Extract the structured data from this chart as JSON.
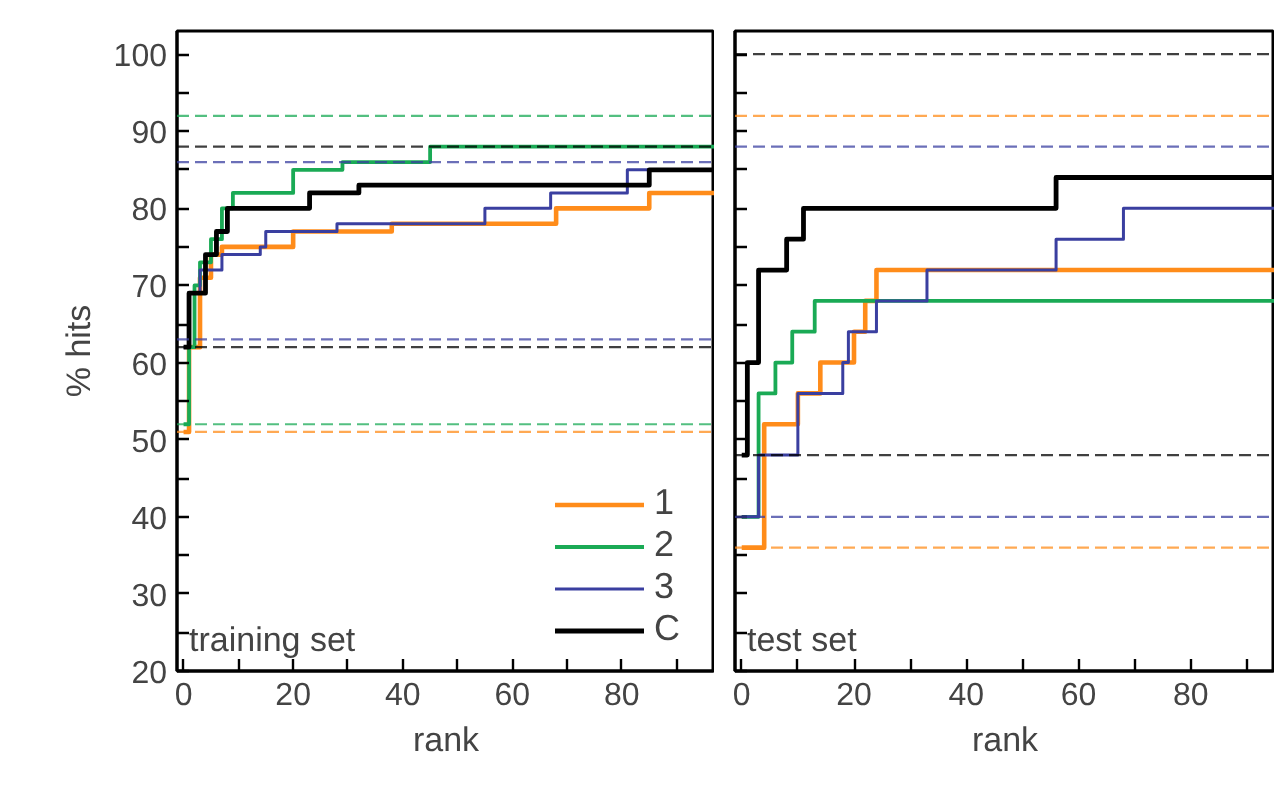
{
  "chart_data": [
    {
      "type": "step",
      "title": "training set",
      "xlabel": "rank",
      "ylabel": "% hits",
      "xlim": [
        -1.2,
        97
      ],
      "ylim": [
        20,
        103
      ],
      "xticks": [
        0,
        {
          "value": 10,
          "label": null
        },
        20,
        {
          "value": 30,
          "label": null
        },
        40,
        {
          "value": 50,
          "label": null
        },
        60,
        {
          "value": 70,
          "label": null
        },
        80,
        {
          "value": 90,
          "label": null
        }
      ],
      "yticks": [
        20,
        {
          "value": 25,
          "label": null
        },
        30,
        {
          "value": 35,
          "label": null
        },
        40,
        {
          "value": 45,
          "label": null
        },
        50,
        {
          "value": 55,
          "label": null
        },
        60,
        {
          "value": 65,
          "label": null
        },
        70,
        {
          "value": 75,
          "label": null
        },
        80,
        {
          "value": 85,
          "label": null
        },
        90,
        {
          "value": 95,
          "label": null
        },
        100
      ],
      "legend": "bottom right",
      "grid": false,
      "line_style": "solid",
      "series": [
        {
          "name": "1",
          "color": "#ff8c1a",
          "x": [
            0,
            1,
            3,
            5,
            7,
            20,
            38,
            68,
            85,
            97
          ],
          "values": [
            51,
            62,
            71,
            74,
            75,
            77,
            78,
            80,
            82,
            82
          ]
        },
        {
          "name": "2",
          "color": "#1aaa55",
          "x": [
            0,
            1,
            2,
            3,
            5,
            7,
            9,
            20,
            29,
            45,
            97
          ],
          "values": [
            52,
            62,
            70,
            73,
            76,
            80,
            82,
            85,
            86,
            88,
            88
          ]
        },
        {
          "name": "3",
          "color": "#3a3fa0",
          "x": [
            0,
            1,
            3,
            7,
            14,
            15,
            28,
            55,
            67,
            81,
            97
          ],
          "values": [
            62,
            69,
            72,
            74,
            75,
            77,
            78,
            80,
            82,
            85,
            85
          ]
        },
        {
          "name": "C",
          "color": "#000000",
          "x": [
            0,
            1,
            4,
            6,
            8,
            23,
            32,
            85,
            97
          ],
          "values": [
            62,
            69,
            74,
            77,
            80,
            82,
            83,
            85,
            85
          ]
        }
      ],
      "ref_lines": [
        {
          "axis": "y",
          "value": 92,
          "color": "#1aaa55",
          "line_style": "dashed"
        },
        {
          "axis": "y",
          "value": 88,
          "color": "#000000",
          "line_style": "dashed"
        },
        {
          "axis": "y",
          "value": 86,
          "color": "#3a3fa0",
          "line_style": "dashed"
        },
        {
          "axis": "y",
          "value": 63,
          "color": "#3a3fa0",
          "line_style": "dashed"
        },
        {
          "axis": "y",
          "value": 62,
          "color": "#000000",
          "line_style": "dashed"
        },
        {
          "axis": "y",
          "value": 52,
          "color": "#1aaa55",
          "line_style": "dashed"
        },
        {
          "axis": "y",
          "value": 51,
          "color": "#ff8c1a",
          "line_style": "dashed"
        }
      ]
    },
    {
      "type": "step",
      "title": "test set",
      "xlabel": "rank",
      "xlim": [
        -1.2,
        95
      ],
      "ylim": [
        20,
        103
      ],
      "tick_labels": "x",
      "xticks": [
        0,
        {
          "value": 10,
          "label": null
        },
        20,
        {
          "value": 30,
          "label": null
        },
        40,
        {
          "value": 50,
          "label": null
        },
        60,
        {
          "value": 70,
          "label": null
        },
        80,
        {
          "value": 90,
          "label": null
        }
      ],
      "yticks": [
        {
          "value": 20,
          "label": null
        },
        {
          "value": 25,
          "label": null
        },
        {
          "value": 30,
          "label": null
        },
        {
          "value": 35,
          "label": null
        },
        {
          "value": 40,
          "label": null
        },
        {
          "value": 45,
          "label": null
        },
        {
          "value": 50,
          "label": null
        },
        {
          "value": 55,
          "label": null
        },
        {
          "value": 60,
          "label": null
        },
        {
          "value": 65,
          "label": null
        },
        {
          "value": 70,
          "label": null
        },
        {
          "value": 75,
          "label": null
        },
        {
          "value": 80,
          "label": null
        },
        {
          "value": 85,
          "label": null
        },
        {
          "value": 90,
          "label": null
        },
        {
          "value": 95,
          "label": null
        },
        {
          "value": 100,
          "label": null
        }
      ],
      "grid": false,
      "line_style": "solid",
      "series": [
        {
          "color": "#ff8c1a",
          "x": [
            0,
            4,
            10,
            14,
            20,
            22,
            24,
            95
          ],
          "values": [
            36,
            52,
            56,
            60,
            64,
            68,
            72,
            72
          ]
        },
        {
          "color": "#1aaa55",
          "x": [
            0,
            3,
            6,
            9,
            13,
            95
          ],
          "values": [
            40,
            56,
            60,
            64,
            68,
            68
          ]
        },
        {
          "color": "#3a3fa0",
          "x": [
            0,
            3,
            10,
            18,
            19,
            24,
            33,
            56,
            68,
            95
          ],
          "values": [
            40,
            48,
            56,
            60,
            64,
            68,
            72,
            76,
            80,
            80
          ]
        },
        {
          "color": "#000000",
          "x": [
            0,
            1,
            3,
            8,
            11,
            56,
            95
          ],
          "values": [
            48,
            60,
            72,
            76,
            80,
            84,
            84
          ]
        }
      ],
      "ref_lines": [
        {
          "axis": "y",
          "value": 100,
          "color": "#000000",
          "line_style": "dashed"
        },
        {
          "axis": "y",
          "value": 92,
          "color": "#ff8c1a",
          "line_style": "dashed"
        },
        {
          "axis": "y",
          "value": 88,
          "color": "#3a3fa0",
          "line_style": "dashed"
        },
        {
          "axis": "y",
          "value": 48,
          "color": "#000000",
          "line_style": "dashed"
        },
        {
          "axis": "y",
          "value": 40,
          "color": "#3a3fa0",
          "line_style": "dashed"
        },
        {
          "axis": "y",
          "value": 36,
          "color": "#ff8c1a",
          "line_style": "dashed"
        }
      ]
    }
  ]
}
